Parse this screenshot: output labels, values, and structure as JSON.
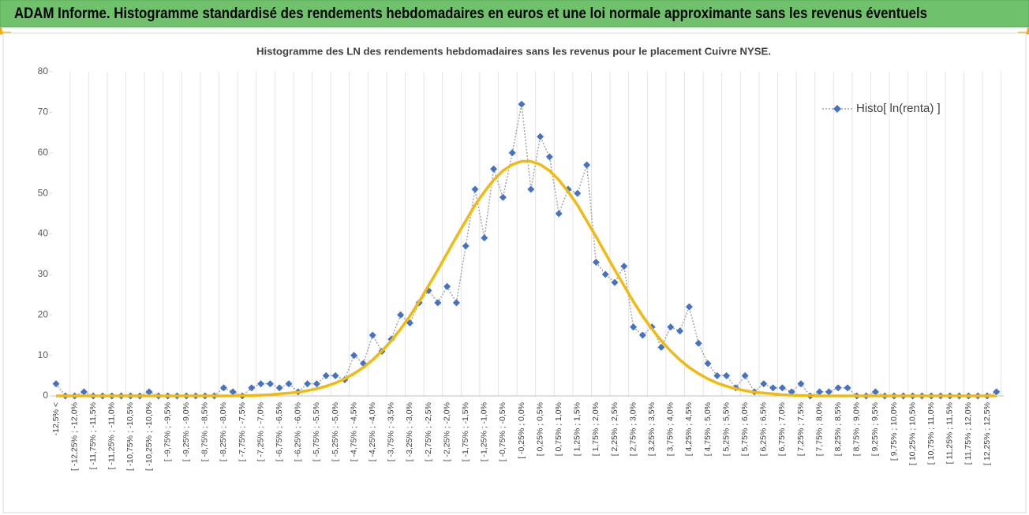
{
  "header": {
    "title": "ADAM Informe. Histogramme standardisé des rendements hebdomadaires en euros et une loi normale approximante sans les revenus éventuels"
  },
  "chart_data": {
    "type": "line",
    "title": "Histogramme  des LN des rendements hebdomadaires sans les revenus pour le placement Cuivre NYSE.",
    "categories": [
      "-12,5% <",
      null,
      "[ -12,25% ; -12,0%",
      null,
      "[ -11,75% ; -11,5%",
      null,
      "[ -11,25% ; -11,0%",
      null,
      "[ -10,75% ; -10,5%",
      null,
      "[ -10,25% ; -10,0%",
      null,
      "[ -9,75% ; -9,5%",
      null,
      "[ -9,25% ; -9,0%",
      null,
      "[ -8,75% ; -8,5%",
      null,
      "[ -8,25% ; -8,0%",
      null,
      "[ -7,75% ; -7,5%",
      null,
      "[ -7,25% ; -7,0%",
      null,
      "[ -6,75% ; -6,5%",
      null,
      "[ -6,25% ; -6,0%",
      null,
      "[ -5,75% ; -5,5%",
      null,
      "[ -5,25% ; -5,0%",
      null,
      "[ -4,75% ; -4,5%",
      null,
      "[ -4,25% ; -4,0%",
      null,
      "[ -3,75% ; -3,5%",
      null,
      "[ -3,25% ; -3,0%",
      null,
      "[ -2,75% ; -2,5%",
      null,
      "[ -2,25% ; -2,0%",
      null,
      "[ -1,75% ; -1,5%",
      null,
      "[ -1,25% ; -1,0%",
      null,
      "[ -0,75% ; -0,5%",
      null,
      "[ -0,25% ; 0,0%",
      null,
      "[ 0,25% ; 0,5%",
      null,
      "[ 0,75% ; 1,0%",
      null,
      "[ 1,25% ; 1,5%",
      null,
      "[ 1,75% ; 2,0%",
      null,
      "[ 2,25% ; 2,5%",
      null,
      "[ 2,75% ; 3,0%",
      null,
      "[ 3,25% ; 3,5%",
      null,
      "[ 3,75% ; 4,0%",
      null,
      "[ 4,25% ; 4,5%",
      null,
      "[ 4,75% ; 5,0%",
      null,
      "[ 5,25% ; 5,5%",
      null,
      "[ 5,75% ; 6,0%",
      null,
      "[ 6,25% ; 6,5%",
      null,
      "[ 6,75% ; 7,0%",
      null,
      "[ 7,25% ; 7,5%",
      null,
      "[ 7,75% ; 8,0%",
      null,
      "[ 8,25% ; 8,5%",
      null,
      "[ 8,75% ; 9,0%",
      null,
      "[ 9,25% ; 9,5%",
      null,
      "[ 9,75% ; 10,0%",
      null,
      "[ 10,25% ; 10,5%",
      null,
      "[ 10,75% ; 11,0%",
      null,
      "[ 11,25% ; 11,5%",
      null,
      "[ 11,75% ; 12,0%",
      null,
      "[ 12,25% ; 12,5%",
      null
    ],
    "series": [
      {
        "name": "Histo[ ln(renta) ]",
        "color": "#4472c4",
        "line_color": "#a6a6a6",
        "line_style": "dotted",
        "marker": "diamond",
        "values": [
          3,
          0,
          0,
          1,
          0,
          0,
          0,
          0,
          0,
          0,
          1,
          0,
          0,
          0,
          0,
          0,
          0,
          0,
          2,
          1,
          0,
          2,
          3,
          3,
          2,
          3,
          1,
          3,
          3,
          5,
          5,
          4,
          10,
          8,
          15,
          11,
          14,
          20,
          18,
          23,
          26,
          23,
          27,
          23,
          37,
          51,
          39,
          56,
          49,
          60,
          72,
          51,
          64,
          59,
          45,
          51,
          50,
          57,
          33,
          30,
          28,
          32,
          17,
          15,
          17,
          12,
          17,
          16,
          22,
          13,
          8,
          5,
          5,
          2,
          5,
          1,
          3,
          2,
          2,
          1,
          3,
          0,
          1,
          1,
          2,
          2,
          0,
          0,
          1,
          0,
          0,
          0,
          0,
          0,
          0,
          0,
          0,
          0,
          0,
          0,
          0,
          1
        ]
      },
      {
        "color": "#f2b90f",
        "line_style": "solid",
        "marker": "none",
        "values": [
          0,
          0,
          0,
          0,
          0,
          0,
          0,
          0,
          0,
          0,
          0,
          0,
          0,
          0,
          0,
          0,
          0,
          0,
          0,
          0,
          0.1,
          0.1,
          0.2,
          0.3,
          0.5,
          0.7,
          0.9,
          1.3,
          1.8,
          2.4,
          3.2,
          4.2,
          5.5,
          7.0,
          8.9,
          11.1,
          13.6,
          16.5,
          19.7,
          23.3,
          27.2,
          31.1,
          35.2,
          39.3,
          43.2,
          47.1,
          50.4,
          53.3,
          55.6,
          57.1,
          57.9,
          57.9,
          57.1,
          55.6,
          53.3,
          50.4,
          47.1,
          43.2,
          39.3,
          35.2,
          31.1,
          27.2,
          23.3,
          19.7,
          16.5,
          13.6,
          11.1,
          8.9,
          7.0,
          5.5,
          4.2,
          3.2,
          2.4,
          1.8,
          1.3,
          0.9,
          0.7,
          0.5,
          0.3,
          0.2,
          0.1,
          0.1,
          0,
          0,
          0,
          0,
          0,
          0,
          0,
          0,
          0,
          0,
          0,
          0,
          0,
          0,
          0,
          0,
          0,
          0,
          0,
          0
        ]
      }
    ],
    "ylim": [
      0,
      80
    ],
    "yticks": [
      0,
      10,
      20,
      30,
      40,
      50,
      60,
      70,
      80
    ],
    "grid": "x",
    "legend": "upper right"
  }
}
